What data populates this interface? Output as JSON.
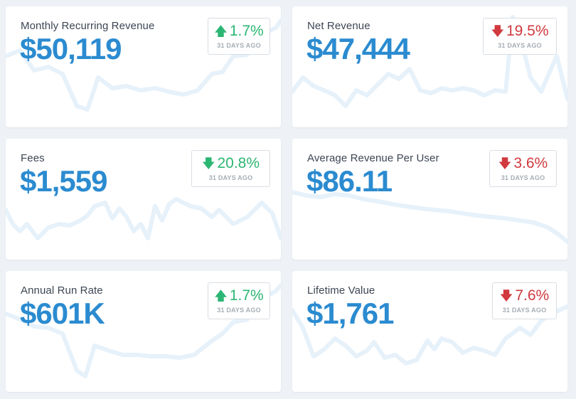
{
  "colors": {
    "background": "#eef2f6",
    "value": "#2b8bd0",
    "increase": "#2bb673",
    "decrease": "#d0393e",
    "sparkline": "#e6f1fa"
  },
  "cards": [
    {
      "label": "Monthly Recurring Revenue",
      "value": "$50,119",
      "change": {
        "direction": "up",
        "arrow_icon": "arrow-up-icon",
        "percent": "1.7%",
        "period": "31 DAYS AGO"
      }
    },
    {
      "label": "Net Revenue",
      "value": "$47,444",
      "change": {
        "direction": "down",
        "arrow_icon": "arrow-down-icon",
        "percent": "19.5%",
        "period": "31 DAYS AGO"
      }
    },
    {
      "label": "Fees",
      "value": "$1,559",
      "change": {
        "direction": "down",
        "arrow_icon": "arrow-down-icon",
        "percent": "20.8%",
        "period": "31 DAYS AGO"
      }
    },
    {
      "label": "Average Revenue Per User",
      "value": "$86.11",
      "change": {
        "direction": "down",
        "arrow_icon": "arrow-down-icon",
        "percent": "3.6%",
        "period": "31 DAYS AGO"
      }
    },
    {
      "label": "Annual Run Rate",
      "value": "$601K",
      "change": {
        "direction": "up",
        "arrow_icon": "arrow-up-icon",
        "percent": "1.7%",
        "period": "31 DAYS AGO"
      }
    },
    {
      "label": "Lifetime Value",
      "value": "$1,761",
      "change": {
        "direction": "down",
        "arrow_icon": "arrow-down-icon",
        "percent": "7.6%",
        "period": "31 DAYS AGO"
      }
    }
  ]
}
